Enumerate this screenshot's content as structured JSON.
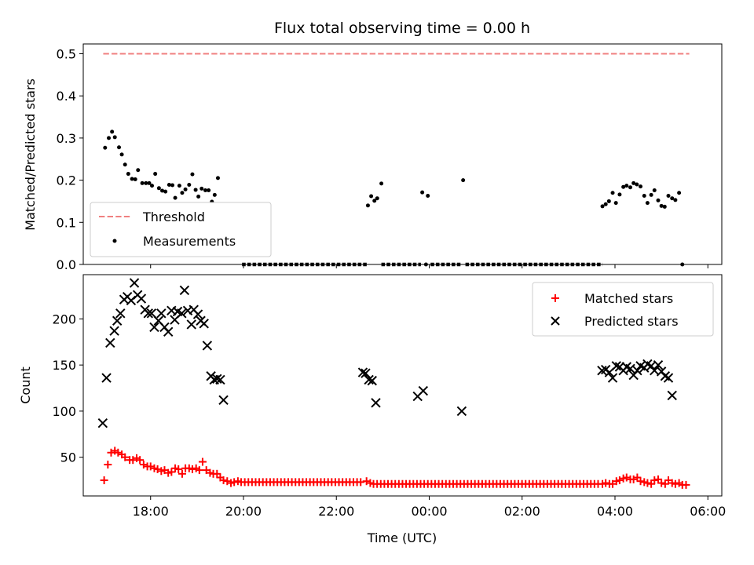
{
  "chart_data": [
    {
      "type": "scatter",
      "title": "Flux total observing time = 0.00 h",
      "ylabel": "Matched/Predicted stars",
      "xlabel": "",
      "ylim": [
        0,
        0.5
      ],
      "yticks": [
        "0.0",
        "0.1",
        "0.2",
        "0.3",
        "0.4",
        "0.5"
      ],
      "xlim_hours": [
        16.55,
        30.3
      ],
      "grid": false,
      "legend": "lower-left",
      "threshold": {
        "name": "Threshold",
        "value": 0.5,
        "x_range_hours": [
          16.98,
          29.6
        ],
        "color": "#f08080"
      },
      "series": [
        {
          "name": "Measurements",
          "color": "#000000",
          "points": [
            [
              17.02,
              0.277
            ],
            [
              17.1,
              0.3
            ],
            [
              17.17,
              0.315
            ],
            [
              17.23,
              0.302
            ],
            [
              17.32,
              0.278
            ],
            [
              17.38,
              0.261
            ],
            [
              17.45,
              0.237
            ],
            [
              17.52,
              0.215
            ],
            [
              17.6,
              0.203
            ],
            [
              17.67,
              0.202
            ],
            [
              17.73,
              0.224
            ],
            [
              17.82,
              0.193
            ],
            [
              17.9,
              0.193
            ],
            [
              17.97,
              0.193
            ],
            [
              18.03,
              0.187
            ],
            [
              18.1,
              0.215
            ],
            [
              18.18,
              0.181
            ],
            [
              18.25,
              0.175
            ],
            [
              18.32,
              0.173
            ],
            [
              18.4,
              0.189
            ],
            [
              18.47,
              0.188
            ],
            [
              18.53,
              0.158
            ],
            [
              18.62,
              0.187
            ],
            [
              18.68,
              0.17
            ],
            [
              18.75,
              0.178
            ],
            [
              18.83,
              0.189
            ],
            [
              18.9,
              0.214
            ],
            [
              18.97,
              0.177
            ],
            [
              19.03,
              0.161
            ],
            [
              19.1,
              0.18
            ],
            [
              19.18,
              0.176
            ],
            [
              19.25,
              0.176
            ],
            [
              19.32,
              0.149
            ],
            [
              19.38,
              0.165
            ],
            [
              19.45,
              0.205
            ],
            [
              22.68,
              0.14
            ],
            [
              22.75,
              0.162
            ],
            [
              22.82,
              0.151
            ],
            [
              22.88,
              0.157
            ],
            [
              22.97,
              0.192
            ],
            [
              23.85,
              0.171
            ],
            [
              23.97,
              0.163
            ],
            [
              24.73,
              0.2
            ],
            [
              27.73,
              0.138
            ],
            [
              27.8,
              0.143
            ],
            [
              27.87,
              0.15
            ],
            [
              27.95,
              0.17
            ],
            [
              28.02,
              0.146
            ],
            [
              28.1,
              0.166
            ],
            [
              28.18,
              0.184
            ],
            [
              28.25,
              0.187
            ],
            [
              28.33,
              0.183
            ],
            [
              28.4,
              0.193
            ],
            [
              28.47,
              0.19
            ],
            [
              28.55,
              0.185
            ],
            [
              28.63,
              0.163
            ],
            [
              28.7,
              0.146
            ],
            [
              28.78,
              0.165
            ],
            [
              28.85,
              0.176
            ],
            [
              28.93,
              0.152
            ],
            [
              29.0,
              0.139
            ],
            [
              29.07,
              0.137
            ],
            [
              29.15,
              0.163
            ],
            [
              29.23,
              0.157
            ],
            [
              29.3,
              0.153
            ],
            [
              29.38,
              0.17
            ],
            [
              29.45,
              0.0
            ]
          ],
          "zero_runs_hours": [
            [
              19.97,
              22.68
            ],
            [
              22.97,
              23.82
            ],
            [
              24.03,
              24.69
            ],
            [
              24.78,
              27.73
            ]
          ],
          "zero_points_hours": [
            23.93
          ]
        }
      ]
    },
    {
      "type": "scatter",
      "title": "",
      "ylabel": "Count",
      "xlabel": "Time (UTC)",
      "ylim": [
        8,
        248
      ],
      "yticks": [
        "50",
        "100",
        "150",
        "200"
      ],
      "xticks": [
        "18:00",
        "20:00",
        "22:00",
        "00:00",
        "02:00",
        "04:00",
        "06:00"
      ],
      "xlim_hours": [
        16.55,
        30.3
      ],
      "grid": false,
      "legend": "upper-right",
      "series": [
        {
          "name": "Matched stars",
          "color": "#ff0000",
          "marker": "plus",
          "points": [
            [
              17.0,
              25
            ],
            [
              17.08,
              42
            ],
            [
              17.15,
              55
            ],
            [
              17.23,
              57
            ],
            [
              17.3,
              55
            ],
            [
              17.38,
              53
            ],
            [
              17.45,
              50
            ],
            [
              17.55,
              47
            ],
            [
              17.62,
              47
            ],
            [
              17.7,
              49
            ],
            [
              17.77,
              47
            ],
            [
              17.85,
              42
            ],
            [
              17.93,
              40
            ],
            [
              18.0,
              40
            ],
            [
              18.08,
              38
            ],
            [
              18.15,
              37
            ],
            [
              18.23,
              35
            ],
            [
              18.3,
              36
            ],
            [
              18.38,
              33
            ],
            [
              18.45,
              34
            ],
            [
              18.53,
              38
            ],
            [
              18.6,
              37
            ],
            [
              18.68,
              32
            ],
            [
              18.75,
              38
            ],
            [
              18.83,
              38
            ],
            [
              18.9,
              37
            ],
            [
              18.98,
              38
            ],
            [
              19.05,
              36
            ],
            [
              19.12,
              45
            ],
            [
              19.2,
              36
            ],
            [
              19.28,
              33
            ],
            [
              19.35,
              32
            ],
            [
              19.43,
              32
            ],
            [
              19.5,
              28
            ],
            [
              19.57,
              25
            ],
            [
              19.65,
              24
            ],
            [
              19.73,
              22
            ],
            [
              19.8,
              23
            ],
            [
              19.88,
              24
            ],
            [
              22.65,
              24
            ],
            [
              22.73,
              22
            ],
            [
              27.73,
              21
            ],
            [
              27.8,
              22
            ],
            [
              27.88,
              21
            ],
            [
              27.95,
              21
            ],
            [
              28.03,
              24
            ],
            [
              28.1,
              25
            ],
            [
              28.18,
              27
            ],
            [
              28.25,
              28
            ],
            [
              28.33,
              26
            ],
            [
              28.4,
              26
            ],
            [
              28.48,
              28
            ],
            [
              28.55,
              24
            ],
            [
              28.63,
              23
            ],
            [
              28.7,
              22
            ],
            [
              28.78,
              21
            ],
            [
              28.85,
              25
            ],
            [
              28.93,
              26
            ],
            [
              29.0,
              22
            ],
            [
              29.08,
              21
            ],
            [
              29.15,
              25
            ],
            [
              29.23,
              22
            ],
            [
              29.3,
              21
            ],
            [
              29.38,
              22
            ],
            [
              29.45,
              20
            ],
            [
              29.53,
              20
            ]
          ],
          "flat_runs": [
            {
              "from_hours": 19.95,
              "to_hours": 22.6,
              "value": 23
            },
            {
              "from_hours": 22.8,
              "to_hours": 27.66,
              "value": 21
            }
          ]
        },
        {
          "name": "Predicted stars",
          "color": "#000000",
          "marker": "x",
          "points": [
            [
              16.97,
              87
            ],
            [
              17.05,
              136
            ],
            [
              17.13,
              174
            ],
            [
              17.22,
              187
            ],
            [
              17.28,
              198
            ],
            [
              17.35,
              206
            ],
            [
              17.43,
              221
            ],
            [
              17.5,
              224
            ],
            [
              17.58,
              220
            ],
            [
              17.65,
              239
            ],
            [
              17.72,
              226
            ],
            [
              17.8,
              222
            ],
            [
              17.88,
              210
            ],
            [
              17.95,
              206
            ],
            [
              18.02,
              206
            ],
            [
              18.08,
              191
            ],
            [
              18.17,
              198
            ],
            [
              18.23,
              206
            ],
            [
              18.3,
              191
            ],
            [
              18.38,
              186
            ],
            [
              18.45,
              209
            ],
            [
              18.52,
              199
            ],
            [
              18.58,
              208
            ],
            [
              18.67,
              206
            ],
            [
              18.73,
              231
            ],
            [
              18.8,
              209
            ],
            [
              18.88,
              194
            ],
            [
              18.93,
              210
            ],
            [
              19.02,
              205
            ],
            [
              19.08,
              198
            ],
            [
              19.15,
              195
            ],
            [
              19.22,
              171
            ],
            [
              19.3,
              138
            ],
            [
              19.37,
              134
            ],
            [
              19.43,
              135
            ],
            [
              19.5,
              134
            ],
            [
              19.57,
              112
            ],
            [
              22.57,
              142
            ],
            [
              22.63,
              141
            ],
            [
              22.7,
              134
            ],
            [
              22.77,
              133
            ],
            [
              22.85,
              109
            ],
            [
              23.75,
              116
            ],
            [
              23.87,
              122
            ],
            [
              24.7,
              100
            ],
            [
              27.72,
              144
            ],
            [
              27.8,
              145
            ],
            [
              27.88,
              142
            ],
            [
              27.95,
              136
            ],
            [
              28.03,
              149
            ],
            [
              28.1,
              148
            ],
            [
              28.18,
              144
            ],
            [
              28.25,
              148
            ],
            [
              28.33,
              146
            ],
            [
              28.4,
              139
            ],
            [
              28.48,
              144
            ],
            [
              28.55,
              149
            ],
            [
              28.63,
              147
            ],
            [
              28.7,
              151
            ],
            [
              28.78,
              149
            ],
            [
              28.85,
              144
            ],
            [
              28.93,
              150
            ],
            [
              29.0,
              143
            ],
            [
              29.08,
              138
            ],
            [
              29.15,
              136
            ],
            [
              29.23,
              117
            ]
          ]
        }
      ]
    }
  ],
  "x_tick_hours": [
    18,
    20,
    22,
    24,
    26,
    28,
    30
  ]
}
